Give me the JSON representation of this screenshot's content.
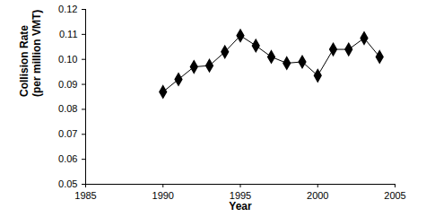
{
  "chart_data": {
    "type": "line",
    "x_label": "Year",
    "y_label": "Collision Rate\n(per million VMT)",
    "x": [
      1990,
      1991,
      1992,
      1993,
      1994,
      1995,
      1996,
      1997,
      1998,
      1999,
      2000,
      2001,
      2002,
      2003,
      2004
    ],
    "values": [
      0.087,
      0.092,
      0.097,
      0.0975,
      0.103,
      0.1095,
      0.1055,
      0.101,
      0.0985,
      0.099,
      0.0935,
      0.104,
      0.104,
      0.1085,
      0.101
    ],
    "color": "#000000",
    "marker": "diamond",
    "xlim": [
      1985,
      2005
    ],
    "xticks": [
      1985,
      1990,
      1995,
      2000,
      2005
    ],
    "ylim": [
      0.05,
      0.12
    ],
    "yticks": [
      0.05,
      0.06,
      0.07,
      0.08,
      0.09,
      {
        "value": 0.1,
        "label": "0.10"
      },
      0.11,
      0.12
    ],
    "grid": false
  }
}
